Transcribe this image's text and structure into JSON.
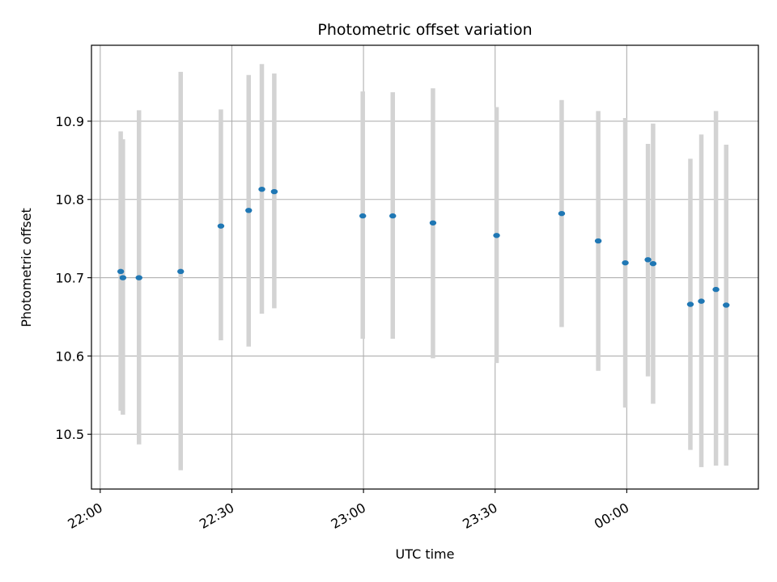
{
  "chart_data": {
    "type": "scatter",
    "title": "Photometric offset variation",
    "xlabel": "UTC time",
    "ylabel": "Photometric offset",
    "x_tick_labels": [
      "22:00",
      "22:30",
      "23:00",
      "23:30",
      "00:00"
    ],
    "x_tick_minutes": [
      0,
      30,
      60,
      90,
      120
    ],
    "xlim_minutes": [
      -2,
      150
    ],
    "y_ticks": [
      10.5,
      10.6,
      10.7,
      10.8,
      10.9
    ],
    "y_tick_labels": [
      "10.5",
      "10.6",
      "10.7",
      "10.8",
      "10.9"
    ],
    "ylim": [
      10.43,
      10.997
    ],
    "grid": true,
    "colors": {
      "point": "#1f77b4",
      "errorbar": "#d3d3d3",
      "grid": "#b0b0b0"
    },
    "points": [
      {
        "t": "22:04:40",
        "y": 10.708,
        "lo": 10.53,
        "hi": 10.887
      },
      {
        "t": "22:05:10",
        "y": 10.7,
        "lo": 10.525,
        "hi": 10.877
      },
      {
        "t": "22:08:50",
        "y": 10.7,
        "lo": 10.487,
        "hi": 10.914
      },
      {
        "t": "22:18:20",
        "y": 10.708,
        "lo": 10.454,
        "hi": 10.963
      },
      {
        "t": "22:27:30",
        "y": 10.766,
        "lo": 10.62,
        "hi": 10.915
      },
      {
        "t": "22:33:50",
        "y": 10.786,
        "lo": 10.612,
        "hi": 10.959
      },
      {
        "t": "22:36:50",
        "y": 10.813,
        "lo": 10.654,
        "hi": 10.973
      },
      {
        "t": "22:39:40",
        "y": 10.81,
        "lo": 10.661,
        "hi": 10.961
      },
      {
        "t": "22:59:50",
        "y": 10.779,
        "lo": 10.622,
        "hi": 10.938
      },
      {
        "t": "23:06:40",
        "y": 10.779,
        "lo": 10.622,
        "hi": 10.937
      },
      {
        "t": "23:15:50",
        "y": 10.77,
        "lo": 10.597,
        "hi": 10.942
      },
      {
        "t": "23:30:20",
        "y": 10.754,
        "lo": 10.591,
        "hi": 10.918
      },
      {
        "t": "23:45:10",
        "y": 10.782,
        "lo": 10.637,
        "hi": 10.927
      },
      {
        "t": "23:53:30",
        "y": 10.747,
        "lo": 10.581,
        "hi": 10.913
      },
      {
        "t": "23:59:40",
        "y": 10.719,
        "lo": 10.534,
        "hi": 10.904
      },
      {
        "t": "00:04:50",
        "y": 10.723,
        "lo": 10.574,
        "hi": 10.871
      },
      {
        "t": "00:06:00",
        "y": 10.718,
        "lo": 10.539,
        "hi": 10.897
      },
      {
        "t": "00:14:30",
        "y": 10.666,
        "lo": 10.48,
        "hi": 10.852
      },
      {
        "t": "00:17:00",
        "y": 10.67,
        "lo": 10.458,
        "hi": 10.883
      },
      {
        "t": "00:20:20",
        "y": 10.685,
        "lo": 10.46,
        "hi": 10.913
      },
      {
        "t": "00:22:40",
        "y": 10.665,
        "lo": 10.46,
        "hi": 10.87
      }
    ]
  }
}
